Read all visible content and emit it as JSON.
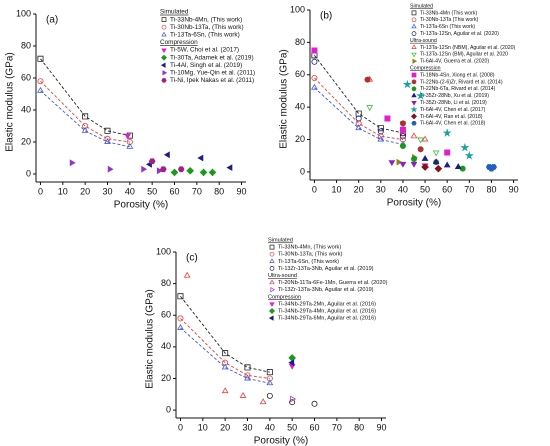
{
  "chart_data": [
    {
      "type": "scatter",
      "panel": "(a)",
      "xlabel": "Porosity (%)",
      "ylabel": "Elastic modulus (GPa)",
      "xlim": [
        -2,
        92
      ],
      "ylim": [
        -5,
        100
      ],
      "xticks": [
        0,
        10,
        20,
        30,
        40,
        50,
        60,
        70,
        80,
        90
      ],
      "yticks": [
        0,
        20,
        40,
        60,
        80,
        100
      ],
      "legend_groups": [
        {
          "title": "Simulated",
          "series": [
            {
              "name": "Ti-33Nb-4Mn, (This work)",
              "color": "#222222",
              "marker": "square",
              "filled": false,
              "line": "dashed",
              "x": [
                0,
                20,
                30,
                40
              ],
              "values": [
                72,
                36,
                27,
                24
              ]
            },
            {
              "name": "Ti-30Nb-13Ta, (This work)",
              "color": "#e8403a",
              "marker": "circle",
              "filled": false,
              "line": "dashed",
              "x": [
                0,
                20,
                30,
                40
              ],
              "values": [
                58,
                30,
                22,
                20
              ]
            },
            {
              "name": "Ti-13Ta-6Sn, (This work)",
              "color": "#3b5bdb",
              "marker": "triangle-up",
              "filled": false,
              "line": "dashed",
              "x": [
                0,
                20,
                30,
                40
              ],
              "values": [
                52,
                27,
                20,
                17
              ]
            }
          ]
        },
        {
          "title": "Compression",
          "series": [
            {
              "name": "Ti-5W, Choi et al. (2017)",
              "color": "#e020d0",
              "marker": "triangle-down",
              "filled": true,
              "x": [
                39
              ],
              "values": [
                24
              ]
            },
            {
              "name": "Ti-30Ta, Adamek et al. (2019)",
              "color": "#1a9a1a",
              "marker": "diamond",
              "filled": true,
              "x": [
                60,
                67,
                73,
                77
              ],
              "values": [
                1,
                2,
                1,
                1
              ]
            },
            {
              "name": "Ti-4Al, Singh et al. (2019)",
              "color": "#1c1c8c",
              "marker": "triangle-left",
              "filled": true,
              "x": [
                49,
                57,
                72,
                85
              ],
              "values": [
                6,
                12,
                10,
                4
              ]
            },
            {
              "name": "Ti-10Mg, Yue-Qin et al. (2011)",
              "color": "#9b30d0",
              "marker": "triangle-right",
              "filled": true,
              "x": [
                14,
                31,
                46,
                53
              ],
              "values": [
                7,
                3,
                3,
                2
              ]
            },
            {
              "name": "Ti-Ni, Ipek Nakas et al. (2011)",
              "color": "#a0208a",
              "marker": "hexagon",
              "filled": true,
              "x": [
                50,
                55,
                63
              ],
              "values": [
                8,
                3,
                3
              ]
            }
          ]
        }
      ]
    },
    {
      "type": "scatter",
      "panel": "(b)",
      "xlabel": "Porosity (%)",
      "ylabel": "Elastic modulus (GPa)",
      "xlim": [
        -2,
        92
      ],
      "ylim": [
        -5,
        100
      ],
      "xticks": [
        0,
        10,
        20,
        30,
        40,
        50,
        60,
        70,
        80,
        90
      ],
      "yticks": [
        0,
        20,
        40,
        60,
        80,
        100
      ],
      "legend_groups": [
        {
          "title": "Simulated",
          "series": [
            {
              "name": "Ti-33Nb-4Mn (This work)",
              "color": "#222222",
              "marker": "square",
              "filled": false,
              "line": "dashed",
              "x": [
                0,
                20,
                30,
                40
              ],
              "values": [
                72,
                36,
                27,
                24
              ]
            },
            {
              "name": "Ti-30Nb-13Ta (This work)",
              "color": "#e8403a",
              "marker": "circle",
              "filled": false,
              "line": "dashed",
              "x": [
                0,
                20,
                30,
                40
              ],
              "values": [
                58,
                30,
                22,
                20
              ]
            },
            {
              "name": "Ti-13Ta-6Sn (This work)",
              "color": "#3b5bdb",
              "marker": "triangle-up",
              "filled": false,
              "line": "dashed",
              "x": [
                0,
                20,
                30,
                40
              ],
              "values": [
                52,
                27,
                20,
                17
              ]
            },
            {
              "name": "Ti-13Ta-12Sn, Aguilar et al. (2020)",
              "color": "#1c1c8c",
              "marker": "circle",
              "filled": false,
              "x": [
                0,
                20,
                30,
                40
              ],
              "values": [
                68,
                33,
                25,
                22
              ]
            }
          ]
        },
        {
          "title": "Ultra-sound",
          "series": [
            {
              "name": "Ti-13Ta-12Sn (NBM), Aguilar et al. (2020)",
              "color": "#e8403a",
              "marker": "triangle-up",
              "filled": false,
              "x": [
                25,
                40,
                45,
                50
              ],
              "values": [
                57,
                25,
                22,
                20
              ]
            },
            {
              "name": "Ti-13Ta-12Sn (BM), Aguilar et al. 2020",
              "color": "#38c038",
              "marker": "triangle-down",
              "filled": false,
              "x": [
                25,
                40,
                48,
                55
              ],
              "values": [
                40,
                30,
                20,
                12
              ]
            },
            {
              "name": "Ti-6Al-4V, Guerra et al. (2020)",
              "color": "#8a8a10",
              "marker": "triangle-right",
              "filled": true,
              "x": [
                38,
                45
              ],
              "values": [
                6,
                9
              ]
            }
          ]
        },
        {
          "title": "Compression",
          "series": [
            {
              "name": "Ti-18Nb-4Sn, Xiong et al. (2008)",
              "color": "#e020d0",
              "marker": "square",
              "filled": true,
              "x": [
                0,
                33,
                40,
                60
              ],
              "values": [
                75,
                33,
                26,
                12
              ]
            },
            {
              "name": "Ti-22Nb-(2-6)Zr, Rivard et al. (2014)",
              "color": "#b03030",
              "marker": "circle",
              "filled": true,
              "x": [
                24,
                40,
                48
              ],
              "values": [
                57,
                30,
                14
              ]
            },
            {
              "name": "Ti-22Nb-6Ta, Rivard et al. (2014)",
              "color": "#1a9a1a",
              "marker": "circle",
              "filled": true,
              "x": [
                40,
                45,
                55,
                67
              ],
              "values": [
                16,
                8,
                6,
                2
              ]
            },
            {
              "name": "Ti-35Zr-28Nb, Xu et al. (2019)",
              "color": "#1c1c8c",
              "marker": "triangle-up",
              "filled": true,
              "x": [
                50,
                55,
                60,
                65
              ],
              "values": [
                8,
                6,
                4,
                3
              ]
            },
            {
              "name": "Ti-35Zr-28Nb, Li et al. (2019)",
              "color": "#8a20c0",
              "marker": "triangle-down",
              "filled": true,
              "x": [
                35,
                40,
                45,
                50
              ],
              "values": [
                6,
                5,
                5,
                4
              ]
            },
            {
              "name": "Ti-6Al-4V, Chen et al. (2017)",
              "color": "#1aa0a0",
              "marker": "star",
              "filled": true,
              "x": [
                42,
                48,
                60,
                68,
                70
              ],
              "values": [
                54,
                47,
                24,
                15,
                10
              ]
            },
            {
              "name": "Ti-6Al-4V, Ran et al. (2018)",
              "color": "#8a1020",
              "marker": "diamond",
              "filled": true,
              "x": [
                50,
                56
              ],
              "values": [
                3,
                2
              ]
            },
            {
              "name": "Ti-6Al-4V, Chen et al. (2018)",
              "color": "#2060c0",
              "marker": "hexagon",
              "filled": true,
              "x": [
                79,
                80,
                81
              ],
              "values": [
                3,
                2,
                3
              ]
            }
          ]
        }
      ]
    },
    {
      "type": "scatter",
      "panel": "(c)",
      "xlabel": "Porosity (%)",
      "ylabel": "Elastic modulus (GPa)",
      "xlim": [
        -2,
        92
      ],
      "ylim": [
        -5,
        100
      ],
      "xticks": [
        0,
        10,
        20,
        30,
        40,
        50,
        60,
        70,
        80,
        90
      ],
      "yticks": [
        0,
        20,
        40,
        60,
        80,
        100
      ],
      "legend_groups": [
        {
          "title": "Simulated",
          "series": [
            {
              "name": "Ti-33Nb-4Mn, (This work)",
              "color": "#222222",
              "marker": "square",
              "filled": false,
              "line": "dashed",
              "x": [
                0,
                20,
                30,
                40
              ],
              "values": [
                72,
                36,
                27,
                24
              ]
            },
            {
              "name": "Ti-30Nb-13Ta, (This work)",
              "color": "#e8403a",
              "marker": "circle",
              "filled": false,
              "line": "dashed",
              "x": [
                0,
                20,
                30,
                40
              ],
              "values": [
                58,
                30,
                22,
                20
              ]
            },
            {
              "name": "Ti-13Ta-6Sn, (This work)",
              "color": "#3b5bdb",
              "marker": "triangle-up",
              "filled": false,
              "line": "dashed",
              "x": [
                0,
                20,
                30,
                40
              ],
              "values": [
                52,
                27,
                20,
                17
              ]
            },
            {
              "name": "Ti-13Zr-13Ta-3Nb, Aguilar et al. (2019)",
              "color": "#222222",
              "marker": "circle",
              "filled": false,
              "x": [
                40,
                50,
                60
              ],
              "values": [
                9,
                5,
                4
              ]
            }
          ]
        },
        {
          "title": "Ultra-sound",
          "series": [
            {
              "name": "Ti-20Nb-11Ta-6Fe-1Mn, Guerra et al. (2020)",
              "color": "#e8403a",
              "marker": "triangle-up",
              "filled": false,
              "x": [
                3,
                20,
                28,
                37
              ],
              "values": [
                85,
                12,
                9,
                5
              ]
            },
            {
              "name": "Ti-13Zr-13Ta-3Nb, Aguilar et al. (2019)",
              "color": "#9b30d0",
              "marker": "triangle-right",
              "filled": false,
              "x": [
                50
              ],
              "values": [
                7
              ]
            }
          ]
        },
        {
          "title": "Compression",
          "series": [
            {
              "name": "Ti-34Nb-29Ta-2Mn, Aguilar et al. (2016)",
              "color": "#e020d0",
              "marker": "triangle-down",
              "filled": true,
              "x": [
                50
              ],
              "values": [
                28
              ]
            },
            {
              "name": "Ti-34Nb-29Ta-4Mn, Aguilar et al. (2016)",
              "color": "#1a9a1a",
              "marker": "diamond",
              "filled": true,
              "x": [
                50
              ],
              "values": [
                33
              ]
            },
            {
              "name": "Ti-34Nb-29Ta-6Mn, Aguilar et al. (2016)",
              "color": "#1c1c8c",
              "marker": "triangle-left",
              "filled": true,
              "x": [
                50
              ],
              "values": [
                30
              ]
            }
          ]
        }
      ]
    }
  ]
}
